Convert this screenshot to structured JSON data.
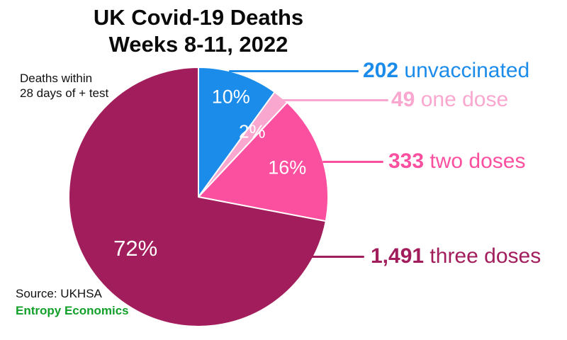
{
  "title": {
    "line1": "UK Covid-19 Deaths",
    "line2": "Weeks 8-11, 2022"
  },
  "note": {
    "line1": "Deaths within",
    "line2": "28 days of + test"
  },
  "source": {
    "line1": "Source: UKHSA",
    "line2": "Entropy Economics"
  },
  "colors": {
    "background": "#ffffff",
    "title_text": "#0a0a0a",
    "note_text": "#111111",
    "source_text": "#111111",
    "entropy_green": "#12a02b",
    "slice_separator": "#ffffff",
    "percent_label_text": "#ffffff"
  },
  "chart_data": {
    "type": "pie",
    "title": "UK Covid-19 Deaths Weeks 8-11, 2022",
    "start_angle_deg": 0,
    "direction": "clockwise",
    "legend_position": "right",
    "slices": [
      {
        "label": "unvaccinated",
        "value": 202,
        "count_label": "202",
        "percent": 10,
        "percent_label": "10%",
        "color": "#1b8ce9"
      },
      {
        "label": "one dose",
        "value": 49,
        "count_label": "49",
        "percent": 2,
        "percent_label": "2%",
        "color": "#f9a7cf"
      },
      {
        "label": "two doses",
        "value": 333,
        "count_label": "333",
        "percent": 16,
        "percent_label": "16%",
        "color": "#fb4f9f"
      },
      {
        "label": "three doses",
        "value": 1491,
        "count_label": "1,491",
        "percent": 72,
        "percent_label": "72%",
        "color": "#a21d5c"
      }
    ]
  }
}
